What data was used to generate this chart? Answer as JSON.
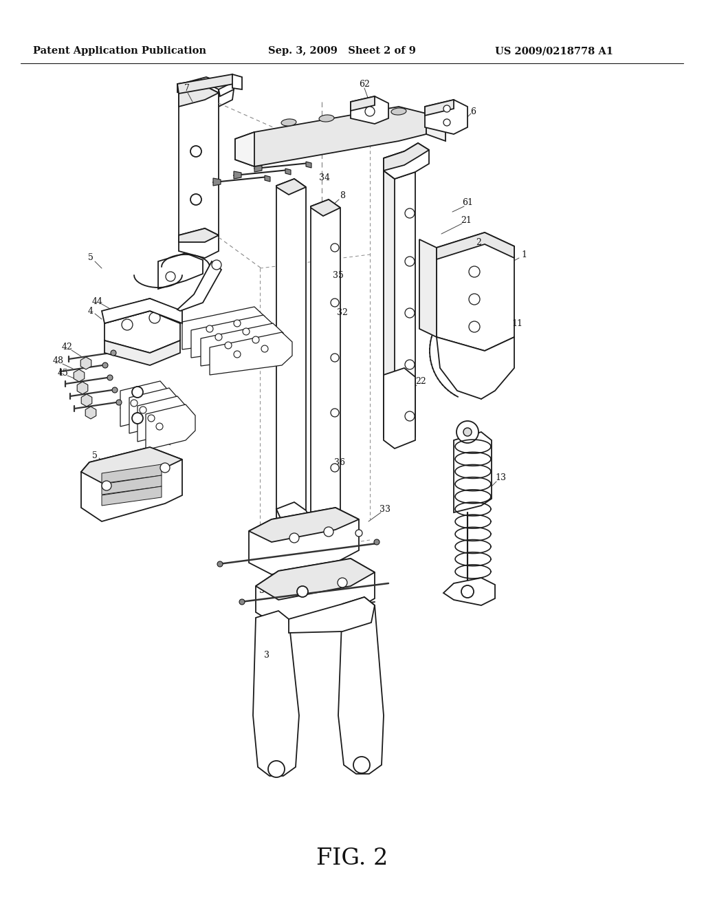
{
  "background_color": "#ffffff",
  "header_left": "Patent Application Publication",
  "header_mid": "Sep. 3, 2009   Sheet 2 of 9",
  "header_right": "US 2009/0218778 A1",
  "caption": "FIG. 2",
  "header_fontsize": 10.5,
  "caption_fontsize": 24,
  "line_color": "#1a1a1a",
  "text_color": "#111111",
  "lw": 1.3
}
